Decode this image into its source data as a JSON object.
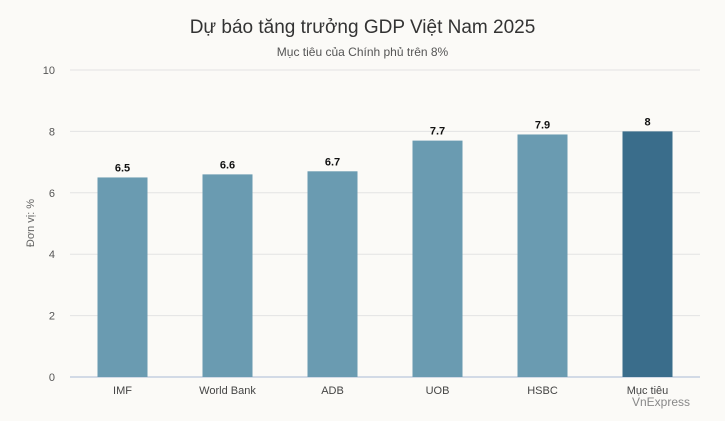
{
  "chart_data": {
    "type": "bar",
    "title": "Dự báo tăng trưởng GDP Việt Nam 2025",
    "subtitle": "Mục tiêu của Chính phủ trên 8%",
    "ylabel": "Đơn vị: %",
    "xlabel": "",
    "ylim": [
      0,
      10
    ],
    "yticks": [
      0,
      2,
      4,
      6,
      8,
      10
    ],
    "grid": true,
    "categories": [
      "IMF",
      "World Bank",
      "ADB",
      "UOB",
      "HSBC",
      "Mục tiêu"
    ],
    "values": [
      6.5,
      6.6,
      6.7,
      7.7,
      7.9,
      8
    ],
    "value_labels": [
      "6.5",
      "6.6",
      "6.7",
      "7.7",
      "7.9",
      "8"
    ],
    "colors": {
      "bar": "#6a9bb1",
      "highlight": "#3a6d8b",
      "grid": "#e3e3e3",
      "axis": "#c5cfe0"
    },
    "highlight_index": 5,
    "source": "VnExpress"
  }
}
